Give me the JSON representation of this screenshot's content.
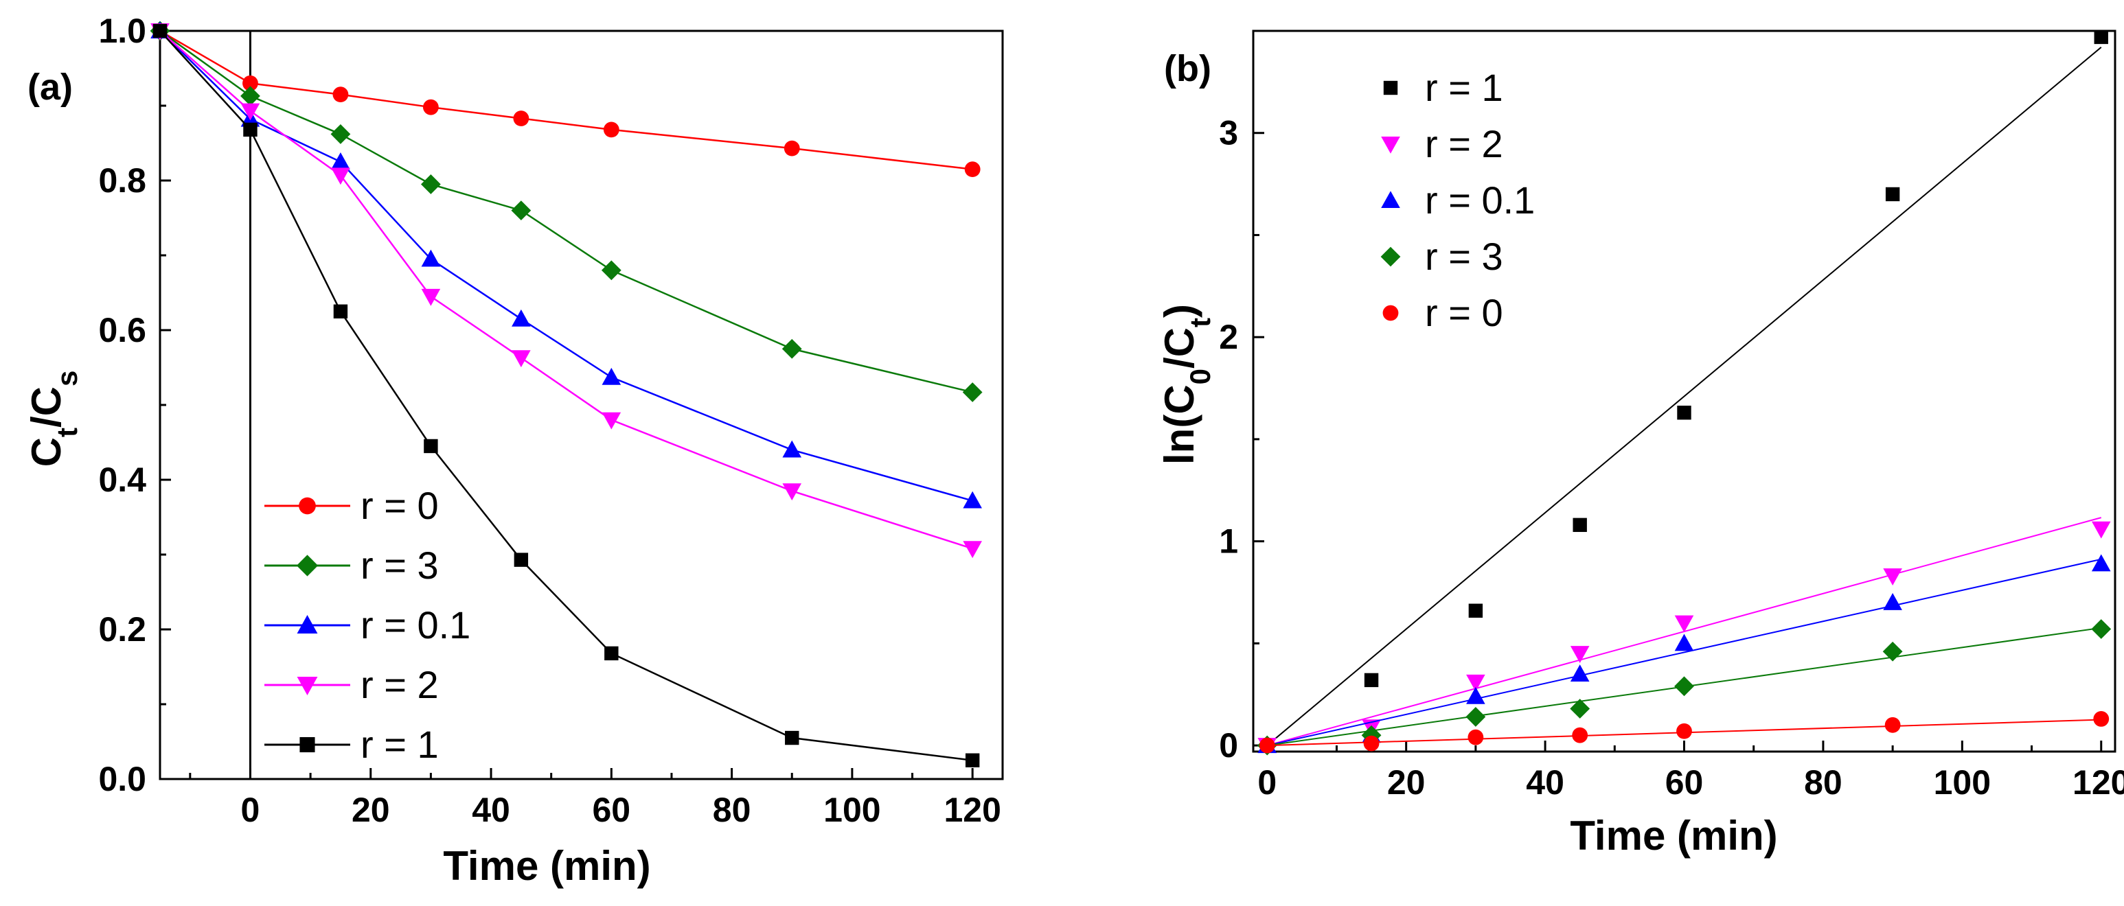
{
  "chart_data": [
    {
      "type": "line",
      "panel_label": "(a)",
      "xlabel": "Time (min)",
      "ylabel_main": "C",
      "ylabel_sub_t": "t",
      "ylabel_sep": "/C",
      "ylabel_sub_s": "s",
      "xlim": [
        -15,
        125
      ],
      "ylim": [
        0,
        1.0
      ],
      "x_ticks": [
        0,
        20,
        40,
        60,
        80,
        100,
        120
      ],
      "x_tick_labels": [
        "0",
        "20",
        "40",
        "60",
        "80",
        "100",
        "120"
      ],
      "y_ticks": [
        0.0,
        0.2,
        0.4,
        0.6,
        0.8,
        1.0
      ],
      "y_tick_labels": [
        "0.0",
        "0.2",
        "0.4",
        "0.6",
        "0.8",
        "1.0"
      ],
      "x": [
        -15,
        0,
        15,
        30,
        45,
        60,
        90,
        120
      ],
      "legend_position": "bottom-left",
      "series": [
        {
          "name": "r = 0",
          "marker": "circle",
          "color": "#ff0000",
          "values": [
            1.0,
            0.93,
            0.915,
            0.898,
            0.883,
            0.868,
            0.843,
            0.815
          ]
        },
        {
          "name": "r = 3",
          "marker": "diamond",
          "color": "#0a7a0a",
          "values": [
            1.0,
            0.913,
            0.862,
            0.795,
            0.76,
            0.68,
            0.575,
            0.517
          ]
        },
        {
          "name": "r = 0.1",
          "marker": "triangle-up",
          "color": "#0000ff",
          "values": [
            1.0,
            0.882,
            0.825,
            0.695,
            0.615,
            0.537,
            0.44,
            0.372
          ]
        },
        {
          "name": "r = 2",
          "marker": "triangle-down",
          "color": "#ff00ff",
          "values": [
            1.0,
            0.893,
            0.807,
            0.645,
            0.563,
            0.48,
            0.385,
            0.308
          ]
        },
        {
          "name": "r = 1",
          "marker": "square",
          "color": "#000000",
          "values": [
            1.0,
            0.868,
            0.625,
            0.445,
            0.293,
            0.168,
            0.055,
            0.025
          ]
        }
      ]
    },
    {
      "type": "scatter",
      "panel_label": "(b)",
      "xlabel": "Time (min)",
      "ylabel_main": "ln(C",
      "ylabel_sub_0": "0",
      "ylabel_sep": "/C",
      "ylabel_sub_t": "t",
      "ylabel_close": ")",
      "xlim": [
        -2,
        122
      ],
      "ylim": [
        -0.03,
        3.5
      ],
      "x_ticks": [
        0,
        20,
        40,
        60,
        80,
        100,
        120
      ],
      "x_tick_labels": [
        "0",
        "20",
        "40",
        "60",
        "80",
        "100",
        "120"
      ],
      "y_ticks": [
        0,
        1,
        2,
        3
      ],
      "y_tick_labels": [
        "0",
        "1",
        "2",
        "3"
      ],
      "x": [
        0,
        15,
        30,
        45,
        60,
        90,
        120
      ],
      "legend_position": "top-left",
      "series": [
        {
          "name": "r = 1",
          "marker": "square",
          "color": "#000000",
          "values": [
            0,
            0.32,
            0.66,
            1.08,
            1.63,
            2.7,
            3.47
          ],
          "fit_slope": 0.0285
        },
        {
          "name": "r = 2",
          "marker": "triangle-down",
          "color": "#ff00ff",
          "values": [
            0,
            0.09,
            0.31,
            0.45,
            0.6,
            0.83,
            1.06
          ],
          "fit_slope": 0.0093
        },
        {
          "name": "r = 0.1",
          "marker": "triangle-up",
          "color": "#0000ff",
          "values": [
            0,
            0.05,
            0.24,
            0.35,
            0.5,
            0.7,
            0.89
          ],
          "fit_slope": 0.0076
        },
        {
          "name": "r = 3",
          "marker": "diamond",
          "color": "#0a7a0a",
          "values": [
            0,
            0.05,
            0.14,
            0.18,
            0.29,
            0.46,
            0.57
          ],
          "fit_slope": 0.0048
        },
        {
          "name": "r = 0",
          "marker": "circle",
          "color": "#ff0000",
          "values": [
            0,
            0.01,
            0.04,
            0.05,
            0.07,
            0.1,
            0.13
          ],
          "fit_slope": 0.00105
        }
      ]
    }
  ]
}
